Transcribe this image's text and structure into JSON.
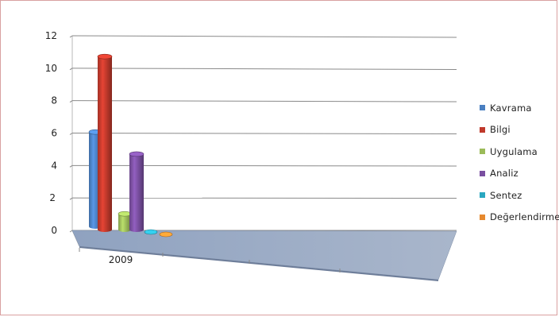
{
  "chart_data": {
    "type": "bar",
    "categories": [
      "2009"
    ],
    "series": [
      {
        "name": "Kavrama",
        "values": [
          6
        ],
        "color": "#4a7fc1"
      },
      {
        "name": "Bilgi",
        "values": [
          11
        ],
        "color": "#c0392b"
      },
      {
        "name": "Uygulama",
        "values": [
          1
        ],
        "color": "#9bbb59"
      },
      {
        "name": "Analiz",
        "values": [
          4.8
        ],
        "color": "#7a4fa0"
      },
      {
        "name": "Sentez",
        "values": [
          0.05
        ],
        "color": "#2aa7c0"
      },
      {
        "name": "Değerlendirme",
        "values": [
          0.05
        ],
        "color": "#e6892e"
      }
    ],
    "y_ticks": [
      "0",
      "2",
      "4",
      "6",
      "8",
      "10",
      "12"
    ],
    "ylim": [
      0,
      12
    ],
    "grid": true,
    "legend": "right",
    "style": "3d-cylinder"
  }
}
